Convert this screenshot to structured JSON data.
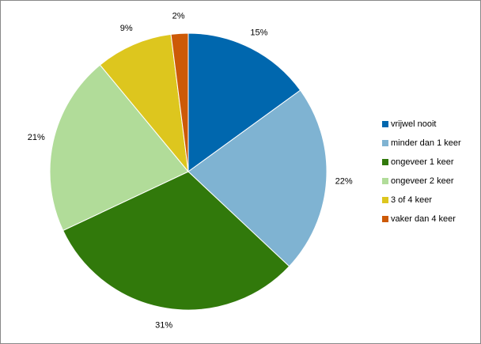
{
  "chart_data": {
    "type": "pie",
    "categories": [
      "vrijwel nooit",
      "minder dan 1 keer",
      "ongeveer 1 keer",
      "ongeveer 2 keer",
      "3 of 4 keer",
      "vaker dan 4 keer"
    ],
    "values": [
      15,
      22,
      31,
      21,
      9,
      2
    ],
    "value_labels": [
      "15%",
      "22%",
      "31%",
      "21%",
      "9%",
      "2%"
    ],
    "colors": [
      "#0067ae",
      "#7fb3d2",
      "#31790b",
      "#b1dc99",
      "#ddc61e",
      "#cd5a07"
    ],
    "legend": "right"
  }
}
